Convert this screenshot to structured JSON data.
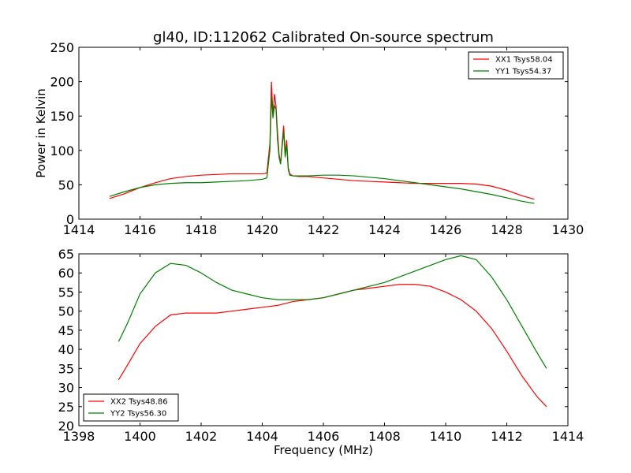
{
  "chart_data": [
    {
      "type": "line",
      "title": "gl40, ID:112062 Calibrated On-source spectrum",
      "xlabel": "",
      "ylabel": "Power in Kelvin",
      "xlim": [
        1414,
        1430
      ],
      "ylim": [
        0,
        250
      ],
      "xticks": [
        1414,
        1416,
        1418,
        1420,
        1422,
        1424,
        1426,
        1428,
        1430
      ],
      "yticks": [
        0,
        50,
        100,
        150,
        200,
        250
      ],
      "legend_position": "top-right",
      "series": [
        {
          "name": "XX1 Tsys58.04",
          "color": "#ff0000",
          "x": [
            1415.0,
            1415.5,
            1416.0,
            1416.5,
            1417.0,
            1417.5,
            1418.0,
            1418.5,
            1419.0,
            1419.5,
            1420.0,
            1420.15,
            1420.25,
            1420.3,
            1420.35,
            1420.4,
            1420.45,
            1420.5,
            1420.55,
            1420.6,
            1420.65,
            1420.7,
            1420.75,
            1420.8,
            1420.85,
            1420.9,
            1421.0,
            1421.2,
            1421.5,
            1422.0,
            1422.5,
            1423.0,
            1423.5,
            1424.0,
            1424.5,
            1425.0,
            1425.5,
            1426.0,
            1426.5,
            1427.0,
            1427.5,
            1428.0,
            1428.5,
            1428.9
          ],
          "y": [
            30,
            37,
            46,
            53,
            59,
            62,
            64,
            65,
            66,
            66,
            66,
            67,
            110,
            200,
            150,
            182,
            165,
            125,
            95,
            80,
            110,
            136,
            95,
            115,
            75,
            66,
            63,
            62,
            62,
            60,
            58,
            56,
            55,
            54,
            53,
            52,
            52,
            52,
            52,
            51,
            48,
            42,
            34,
            29
          ]
        },
        {
          "name": "YY1 Tsys54.37",
          "color": "#008000",
          "x": [
            1415.0,
            1415.5,
            1416.0,
            1416.5,
            1417.0,
            1417.5,
            1418.0,
            1418.5,
            1419.0,
            1419.5,
            1420.0,
            1420.15,
            1420.25,
            1420.3,
            1420.35,
            1420.4,
            1420.45,
            1420.5,
            1420.55,
            1420.6,
            1420.65,
            1420.7,
            1420.75,
            1420.8,
            1420.85,
            1420.9,
            1421.0,
            1421.2,
            1421.5,
            1422.0,
            1422.5,
            1423.0,
            1423.5,
            1424.0,
            1424.5,
            1425.0,
            1425.5,
            1426.0,
            1426.5,
            1427.0,
            1427.5,
            1428.0,
            1428.5,
            1428.9
          ],
          "y": [
            33,
            40,
            46,
            50,
            52,
            53,
            53,
            54,
            55,
            56,
            58,
            60,
            100,
            178,
            147,
            165,
            160,
            115,
            90,
            80,
            105,
            128,
            90,
            108,
            72,
            64,
            63,
            63,
            63,
            64,
            64,
            63,
            61,
            59,
            56,
            53,
            50,
            47,
            44,
            40,
            36,
            31,
            26,
            23
          ]
        }
      ]
    },
    {
      "type": "line",
      "title": "",
      "xlabel": "Frequency (MHz)",
      "ylabel": "",
      "xlim": [
        1398,
        1414
      ],
      "ylim": [
        20,
        65
      ],
      "xticks": [
        1398,
        1400,
        1402,
        1404,
        1406,
        1408,
        1410,
        1412,
        1414
      ],
      "yticks": [
        20,
        25,
        30,
        35,
        40,
        45,
        50,
        55,
        60,
        65
      ],
      "legend_position": "bottom-left",
      "series": [
        {
          "name": "XX2 Tsys48.86",
          "color": "#ff0000",
          "x": [
            1399.3,
            1399.6,
            1400.0,
            1400.5,
            1401.0,
            1401.5,
            1402.0,
            1402.5,
            1403.0,
            1403.5,
            1404.0,
            1404.5,
            1405.0,
            1405.5,
            1406.0,
            1406.5,
            1407.0,
            1407.5,
            1408.0,
            1408.5,
            1409.0,
            1409.5,
            1410.0,
            1410.5,
            1411.0,
            1411.5,
            1412.0,
            1412.5,
            1413.0,
            1413.3
          ],
          "y": [
            32,
            36,
            41.5,
            46,
            49,
            49.5,
            49.5,
            49.5,
            50,
            50.5,
            51,
            51.5,
            52.5,
            53,
            53.5,
            54.5,
            55.5,
            56,
            56.5,
            57,
            57,
            56.5,
            55,
            53,
            50,
            45.5,
            39.5,
            33,
            27.5,
            25
          ]
        },
        {
          "name": "YY2 Tsys56.30",
          "color": "#008000",
          "x": [
            1399.3,
            1399.6,
            1400.0,
            1400.5,
            1401.0,
            1401.5,
            1402.0,
            1402.5,
            1403.0,
            1403.5,
            1404.0,
            1404.5,
            1405.0,
            1405.5,
            1406.0,
            1406.5,
            1407.0,
            1407.5,
            1408.0,
            1408.5,
            1409.0,
            1409.5,
            1410.0,
            1410.5,
            1411.0,
            1411.5,
            1412.0,
            1412.5,
            1413.0,
            1413.3
          ],
          "y": [
            42,
            47,
            54.5,
            60,
            62.5,
            62,
            60,
            57.5,
            55.5,
            54.5,
            53.5,
            53,
            53,
            53,
            53.5,
            54.5,
            55.5,
            56.5,
            57.5,
            59,
            60.5,
            62,
            63.5,
            64.5,
            63.5,
            59,
            53,
            46,
            39,
            35
          ]
        }
      ]
    }
  ]
}
